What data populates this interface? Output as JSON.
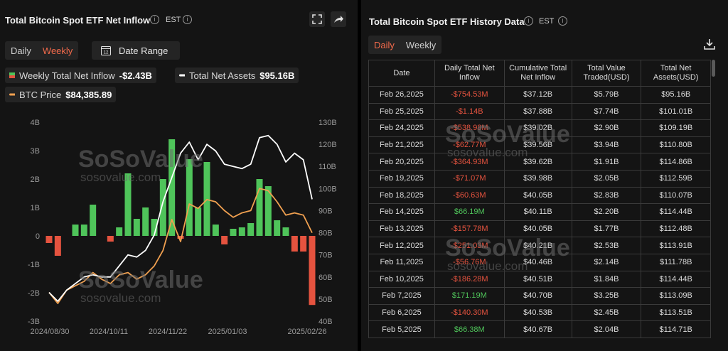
{
  "chart_panel": {
    "title": "Total Bitcoin Spot ETF Net Inflow",
    "timezone": "EST",
    "info_icon": "i",
    "expand_icon": "expand-icon",
    "share_icon": "share-icon",
    "tabs": [
      {
        "label": "Daily",
        "active": false
      },
      {
        "label": "Weekly",
        "active": true
      }
    ],
    "date_range_label": "Date Range",
    "calendar_icon_text": "12",
    "legend": {
      "inflow_label": "Weekly Total Net Inflow",
      "inflow_value": "-$2.43B",
      "assets_label": "Total Net Assets",
      "assets_value": "$95.16B",
      "btc_label": "BTC Price",
      "btc_value": "$84,385.89"
    },
    "watermark": {
      "brand": "SoSoValue",
      "site": "sosovalue.com"
    }
  },
  "chart_data": {
    "type": "bar",
    "x_ticks": [
      "2024/08/30",
      "2024/10/11",
      "2024/11/22",
      "2025/01/03",
      "2025/02/26"
    ],
    "left_axis_ticks": [
      "4B",
      "3B",
      "2B",
      "1B",
      "0",
      "-1B",
      "-2B",
      "-3B"
    ],
    "right_axis_ticks": [
      "130B",
      "120B",
      "110B",
      "100B",
      "90B",
      "80B",
      "70B",
      "60B",
      "50B",
      "40B"
    ],
    "ylim_left": [
      -3,
      4
    ],
    "ylim_right": [
      40,
      130
    ],
    "colors": {
      "positive": "#4fc45a",
      "negative": "#e5533f",
      "assets_line": "#ffffff",
      "btc_line": "#f0a050"
    },
    "series": [
      {
        "name": "Weekly Total Net Inflow",
        "type": "bar",
        "values": [
          -0.25,
          -0.7,
          0,
          0.4,
          0.4,
          1.1,
          0,
          -0.2,
          0.3,
          2.2,
          0.6,
          1.0,
          0.6,
          2.0,
          3.4,
          -0.1,
          2.7,
          1.0,
          2.6,
          0.4,
          -0.3,
          0.25,
          0.3,
          0.45,
          2.0,
          1.75,
          0.55,
          0.3,
          -0.55,
          -0.55,
          -2.43
        ]
      },
      {
        "name": "Total Net Assets",
        "type": "line",
        "values": [
          53,
          49,
          54,
          57,
          60,
          61,
          60,
          60,
          65,
          70,
          69,
          72,
          79,
          94,
          105,
          116,
          121,
          113,
          120,
          117,
          111,
          110,
          109,
          111,
          123,
          124,
          120,
          112,
          116,
          113,
          95.16
        ]
      },
      {
        "name": "BTC Price",
        "type": "line",
        "values": [
          53,
          48,
          54,
          56,
          58,
          62,
          59,
          57,
          61,
          62,
          59,
          61,
          65,
          72,
          86,
          76,
          93,
          91,
          95,
          94,
          90,
          87,
          89,
          90,
          100,
          99,
          94,
          88,
          89,
          88,
          80
        ]
      }
    ]
  },
  "table_panel": {
    "title": "Total Bitcoin Spot ETF History Data",
    "timezone": "EST",
    "info_icon": "i",
    "download_icon": "download-icon",
    "tabs": [
      {
        "label": "Daily",
        "active": true
      },
      {
        "label": "Weekly",
        "active": false
      }
    ],
    "columns": [
      "Date",
      "Daily Total Net Inflow",
      "Cumulative Total Net Inflow",
      "Total Value Traded(USD)",
      "Total Net Assets(USD)"
    ],
    "rows": [
      [
        "Feb 26,2025",
        "-$754.53M",
        "$37.12B",
        "$5.79B",
        "$95.16B"
      ],
      [
        "Feb 25,2025",
        "-$1.14B",
        "$37.88B",
        "$7.74B",
        "$101.01B"
      ],
      [
        "Feb 24,2025",
        "-$538.98M",
        "$39.02B",
        "$2.90B",
        "$109.19B"
      ],
      [
        "Feb 21,2025",
        "-$62.77M",
        "$39.56B",
        "$3.94B",
        "$110.80B"
      ],
      [
        "Feb 20,2025",
        "-$364.93M",
        "$39.62B",
        "$1.91B",
        "$114.86B"
      ],
      [
        "Feb 19,2025",
        "-$71.07M",
        "$39.98B",
        "$2.05B",
        "$112.59B"
      ],
      [
        "Feb 18,2025",
        "-$60.63M",
        "$40.05B",
        "$2.83B",
        "$110.07B"
      ],
      [
        "Feb 14,2025",
        "$66.19M",
        "$40.11B",
        "$2.20B",
        "$114.44B"
      ],
      [
        "Feb 13,2025",
        "-$157.78M",
        "$40.05B",
        "$1.77B",
        "$112.48B"
      ],
      [
        "Feb 12,2025",
        "-$251.03M",
        "$40.21B",
        "$2.53B",
        "$113.91B"
      ],
      [
        "Feb 11,2025",
        "-$56.76M",
        "$40.46B",
        "$2.14B",
        "$111.78B"
      ],
      [
        "Feb 10,2025",
        "-$186.28M",
        "$40.51B",
        "$1.84B",
        "$114.44B"
      ],
      [
        "Feb 7,2025",
        "$171.19M",
        "$40.70B",
        "$3.25B",
        "$113.09B"
      ],
      [
        "Feb 6,2025",
        "-$140.30M",
        "$40.53B",
        "$2.45B",
        "$113.51B"
      ],
      [
        "Feb 5,2025",
        "$66.38M",
        "$40.67B",
        "$2.04B",
        "$114.71B"
      ]
    ]
  }
}
